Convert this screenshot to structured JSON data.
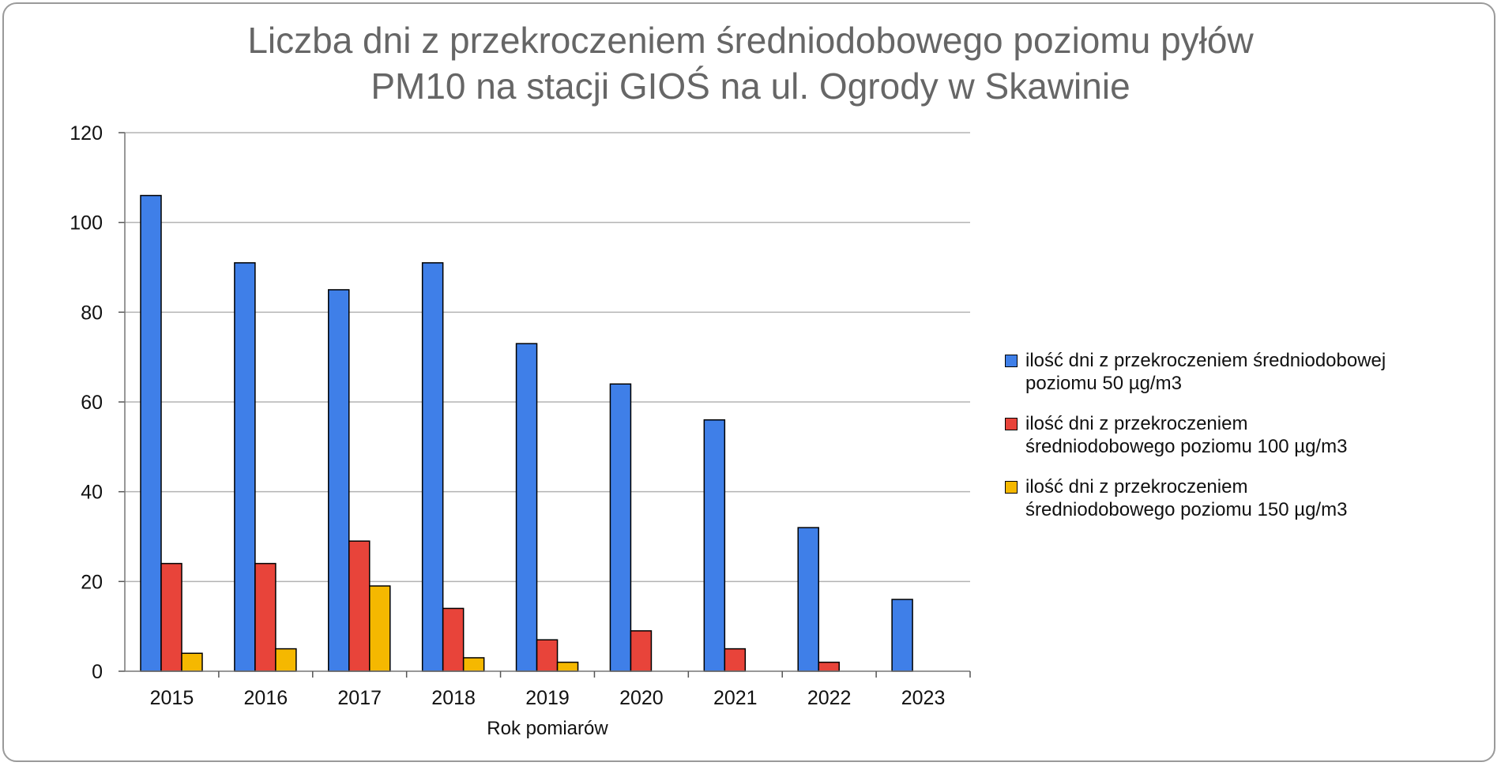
{
  "chart_data": {
    "type": "bar",
    "title_lines": [
      "Liczba dni z przekroczeniem średniodobowego poziomu pyłów",
      "PM10 na stacji GIOŚ na ul. Ogrody w Skawinie"
    ],
    "xlabel": "Rok pomiarów",
    "ylabel": "",
    "categories": [
      "2015",
      "2016",
      "2017",
      "2018",
      "2019",
      "2020",
      "2021",
      "2022",
      "2023"
    ],
    "ylim": [
      0,
      120
    ],
    "yticks": [
      "0",
      "20",
      "40",
      "60",
      "80",
      "100",
      "120"
    ],
    "grid": true,
    "legend_position": "right",
    "series": [
      {
        "name": "ilość dni z przekroczeniem średniodobowej poziomu 50 µg/m3",
        "legend_lines": [
          "ilość dni z przekroczeniem średniodobowej",
          "poziomu 50 µg/m3"
        ],
        "color": "#3F7FE8",
        "values": [
          106,
          91,
          85,
          91,
          73,
          64,
          56,
          32,
          16
        ]
      },
      {
        "name": "ilość dni z przekroczeniem średniodobowego poziomu 100 µg/m3",
        "legend_lines": [
          "ilość dni z przekroczeniem",
          "średniodobowego poziomu 100 µg/m3"
        ],
        "color": "#E8443A",
        "values": [
          24,
          24,
          29,
          14,
          7,
          9,
          5,
          2,
          0
        ]
      },
      {
        "name": "ilość dni z przekroczeniem średniodobowego poziomu 150 µg/m3",
        "legend_lines": [
          "ilość dni z przekroczeniem",
          "średniodobowego poziomu 150 µg/m3"
        ],
        "color": "#F5B800",
        "values": [
          4,
          5,
          19,
          3,
          2,
          0,
          0,
          0,
          0
        ]
      }
    ]
  }
}
